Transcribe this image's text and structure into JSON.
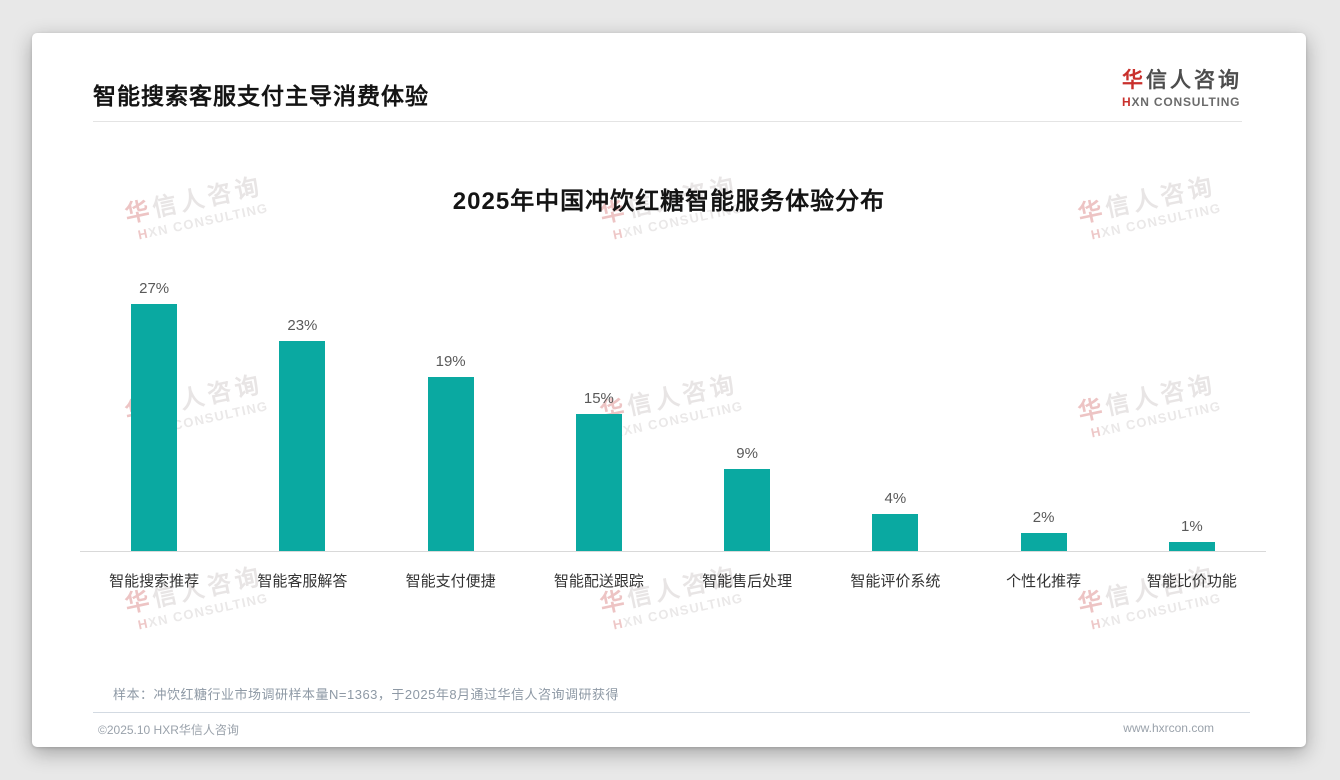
{
  "page": {
    "title": "智能搜索客服支付主导消费体验",
    "note": "样本：冲饮红糖行业市场调研样本量N=1363，于2025年8月通过华信人咨询调研获得",
    "footer_left": "©2025.10 HXR华信人咨询",
    "footer_right": "www.hxrcon.com"
  },
  "logo": {
    "cn_first": "华",
    "cn_rest": "信人咨询",
    "en_first": "H",
    "en_rest": "XN CONSULTING"
  },
  "watermark": {
    "cn_first": "华",
    "cn_rest": "信人咨询",
    "en_first": "H",
    "en_rest": "XN CONSULTING"
  },
  "chart_data": {
    "type": "bar",
    "title": "2025年中国冲饮红糖智能服务体验分布",
    "categories": [
      "智能搜索推荐",
      "智能客服解答",
      "智能支付便捷",
      "智能配送跟踪",
      "智能售后处理",
      "智能评价系统",
      "个性化推荐",
      "智能比价功能"
    ],
    "values": [
      27,
      23,
      19,
      15,
      9,
      4,
      2,
      1
    ],
    "labels": [
      "27%",
      "23%",
      "19%",
      "15%",
      "9%",
      "4%",
      "2%",
      "1%"
    ],
    "unit": "%",
    "bar_color": "#0aa9a1",
    "ylim": [
      0,
      30
    ],
    "grid": false,
    "legend": "none",
    "value_label_position": "top"
  }
}
